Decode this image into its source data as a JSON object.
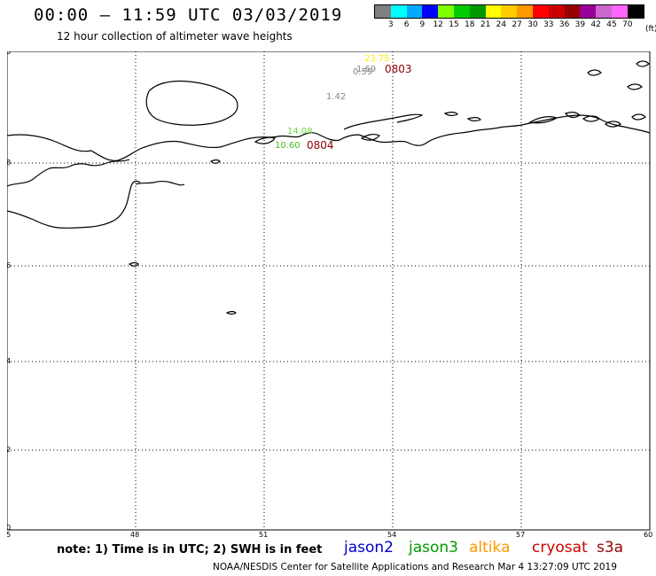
{
  "header": {
    "title": "00:00 – 11:59 UTC 03/03/2019",
    "subtitle": "12 hour collection of altimeter wave heights"
  },
  "scale": {
    "unit": "(ft)",
    "colors": [
      "#7f7f7f",
      "#00ffff",
      "#00aaff",
      "#0000ff",
      "#7fff00",
      "#00cc00",
      "#009900",
      "#ffff00",
      "#ffcc00",
      "#ff9900",
      "#ff0000",
      "#cc0000",
      "#990000",
      "#990099",
      "#cc66cc",
      "#ff66ff",
      "#000000"
    ],
    "labels": [
      "3",
      "6",
      "9",
      "12",
      "15",
      "18",
      "21",
      "24",
      "27",
      "30",
      "33",
      "36",
      "39",
      "42",
      "45",
      "70"
    ]
  },
  "map": {
    "lat_labels": [
      "70",
      "68",
      "66",
      "64",
      "62",
      "60"
    ],
    "lon_labels": [
      "45",
      "48",
      "51",
      "54",
      "57",
      "60"
    ],
    "annotations": [
      {
        "text": "23.75",
        "color": "#ffee00"
      },
      {
        "text": "1.69",
        "color": "#888888"
      },
      {
        "text": "0.59",
        "color": "#888888"
      },
      {
        "text": "0803",
        "color": "#8b0000"
      },
      {
        "text": "1.42",
        "color": "#888888"
      },
      {
        "text": "14.08",
        "color": "#66dd44"
      },
      {
        "text": "10.60",
        "color": "#44bb22"
      },
      {
        "text": "0804",
        "color": "#8b0000"
      }
    ]
  },
  "footer": {
    "note": "note: 1) Time is in UTC; 2) SWH is in feet",
    "legend": [
      {
        "name": "jason2",
        "color": "#0000cc"
      },
      {
        "name": "jason3",
        "color": "#009900"
      },
      {
        "name": "altika",
        "color": "#ff9900"
      },
      {
        "name": "cryosat",
        "color": "#cc0000"
      },
      {
        "name": "s3a",
        "color": "#990000"
      }
    ],
    "credit": "NOAA/NESDIS Center for Satellite Applications and Research   Mar  4 13:27:09 UTC 2019"
  }
}
